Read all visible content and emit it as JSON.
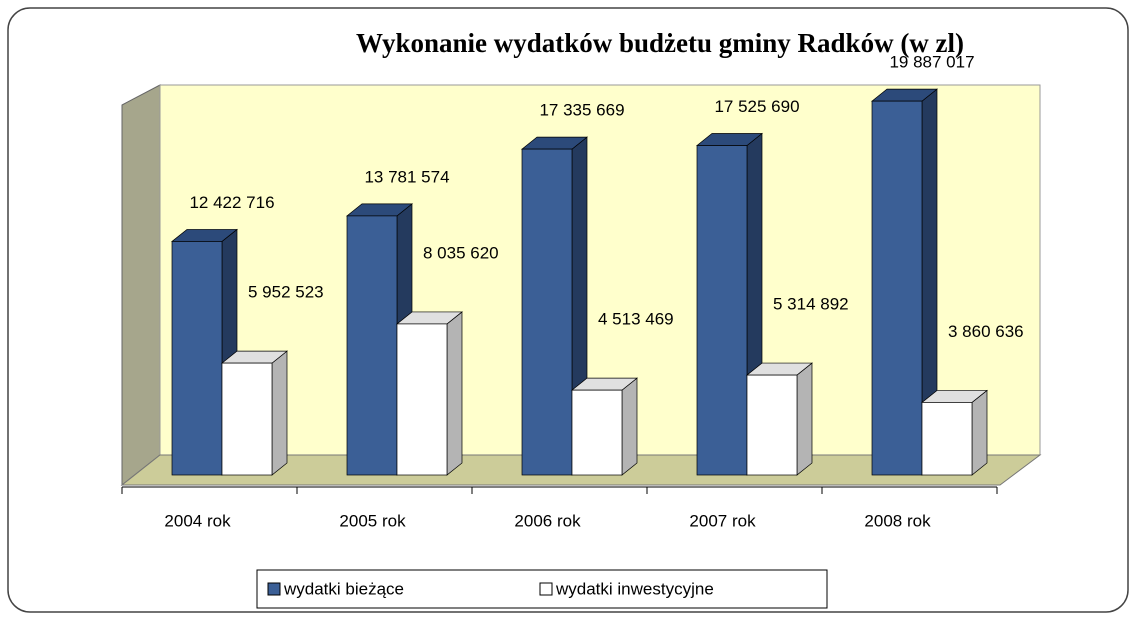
{
  "chart_data": {
    "type": "bar3d",
    "title": "Wykonanie wydatków budżetu gminy Radków (w zl)",
    "categories": [
      "2004 rok",
      "2005 rok",
      "2006 rok",
      "2007 rok",
      "2008 rok"
    ],
    "series": [
      {
        "name": "wydatki bieżące",
        "color": "#3b5f96",
        "values": [
          12422716,
          13781574,
          17335669,
          17525690,
          19887017
        ],
        "value_labels": [
          "12 422 716",
          "13 781 574",
          "17 335 669",
          "17 525 690",
          "19 887 017"
        ]
      },
      {
        "name": "wydatki inwestycyjne",
        "color": "#ffffff",
        "values": [
          5952523,
          8035620,
          4513469,
          5314892,
          3860636
        ],
        "value_labels": [
          "5 952 523",
          "8 035 620",
          "4 513 469",
          "5 314 892",
          "3 860 636"
        ]
      }
    ],
    "ylim": [
      0,
      20000000
    ],
    "legend": "bottom"
  }
}
